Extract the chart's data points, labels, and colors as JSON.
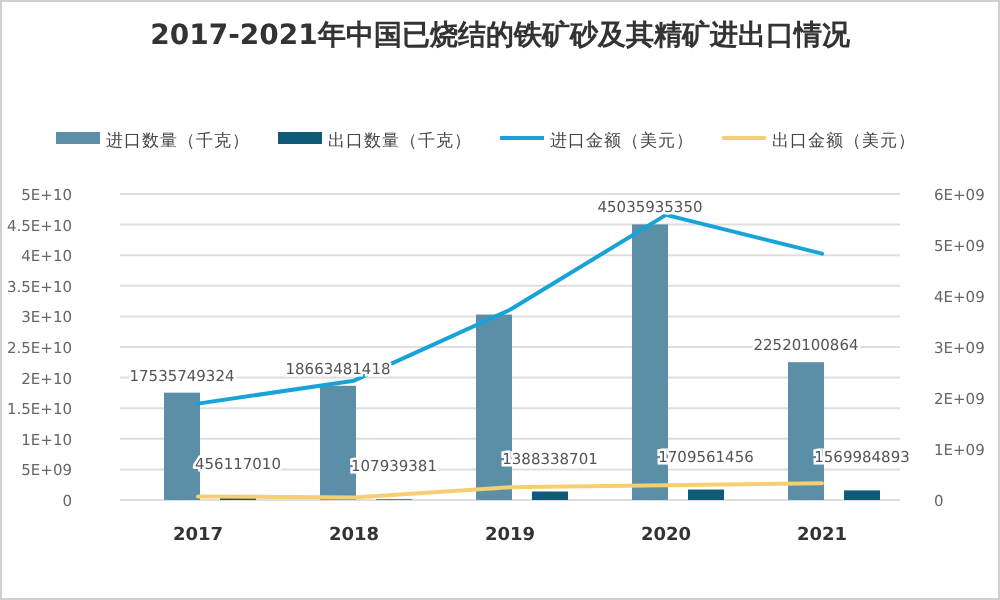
{
  "chart_data": {
    "type": "bar",
    "title": "2017-2021年中国已烧结的铁矿砂及其精矿进出口情况",
    "categories": [
      "2017",
      "2018",
      "2019",
      "2020",
      "2021"
    ],
    "series": [
      {
        "name": "进口数量（千克）",
        "color": "#5b8fa8",
        "values": [
          17535749324,
          18663481418,
          30300000000,
          45035935350,
          22520100864
        ],
        "value_labels": [
          "17535749324",
          "18663481418",
          null,
          "45035935350",
          "22520100864"
        ]
      },
      {
        "name": "出口数量（千克）",
        "color": "#0e5a78",
        "values": [
          456117010,
          107939381,
          1388338701,
          1709561456,
          1569984893
        ],
        "value_labels": [
          "456117010",
          "107939381",
          "1388338701",
          "1709561456",
          "1569984893"
        ]
      },
      {
        "name": "进口金额（美元）",
        "type": "line",
        "axis": "y2",
        "color": "#18a3d8",
        "values": [
          1890000000,
          2340000000,
          3730000000,
          5590000000,
          4830000000
        ]
      },
      {
        "name": "出口金额（美元）",
        "type": "line",
        "axis": "y2",
        "color": "#f5cf72",
        "values": [
          70000000,
          50000000,
          250000000,
          290000000,
          330000000
        ]
      }
    ],
    "ylim": [
      0,
      50000000000
    ],
    "yticks": [
      {
        "value": 0,
        "label": "0"
      },
      {
        "value": 5000000000,
        "label": "5E+09"
      },
      {
        "value": 10000000000,
        "label": "1E+10"
      },
      {
        "value": 15000000000,
        "label": "1.5E+10"
      },
      {
        "value": 20000000000,
        "label": "2E+10"
      },
      {
        "value": 25000000000,
        "label": "2.5E+10"
      },
      {
        "value": 30000000000,
        "label": "3E+10"
      },
      {
        "value": 35000000000,
        "label": "3.5E+10"
      },
      {
        "value": 40000000000,
        "label": "4E+10"
      },
      {
        "value": 45000000000,
        "label": "4.5E+10"
      },
      {
        "value": 50000000000,
        "label": "5E+10"
      }
    ],
    "y2lim": [
      0,
      6000000000
    ],
    "y2ticks": [
      {
        "value": 0,
        "label": "0"
      },
      {
        "value": 1000000000,
        "label": "1E+09"
      },
      {
        "value": 2000000000,
        "label": "2E+09"
      },
      {
        "value": 3000000000,
        "label": "3E+09"
      },
      {
        "value": 4000000000,
        "label": "4E+09"
      },
      {
        "value": 5000000000,
        "label": "5E+09"
      },
      {
        "value": 6000000000,
        "label": "6E+09"
      }
    ],
    "grid": "y",
    "legend": "top"
  }
}
